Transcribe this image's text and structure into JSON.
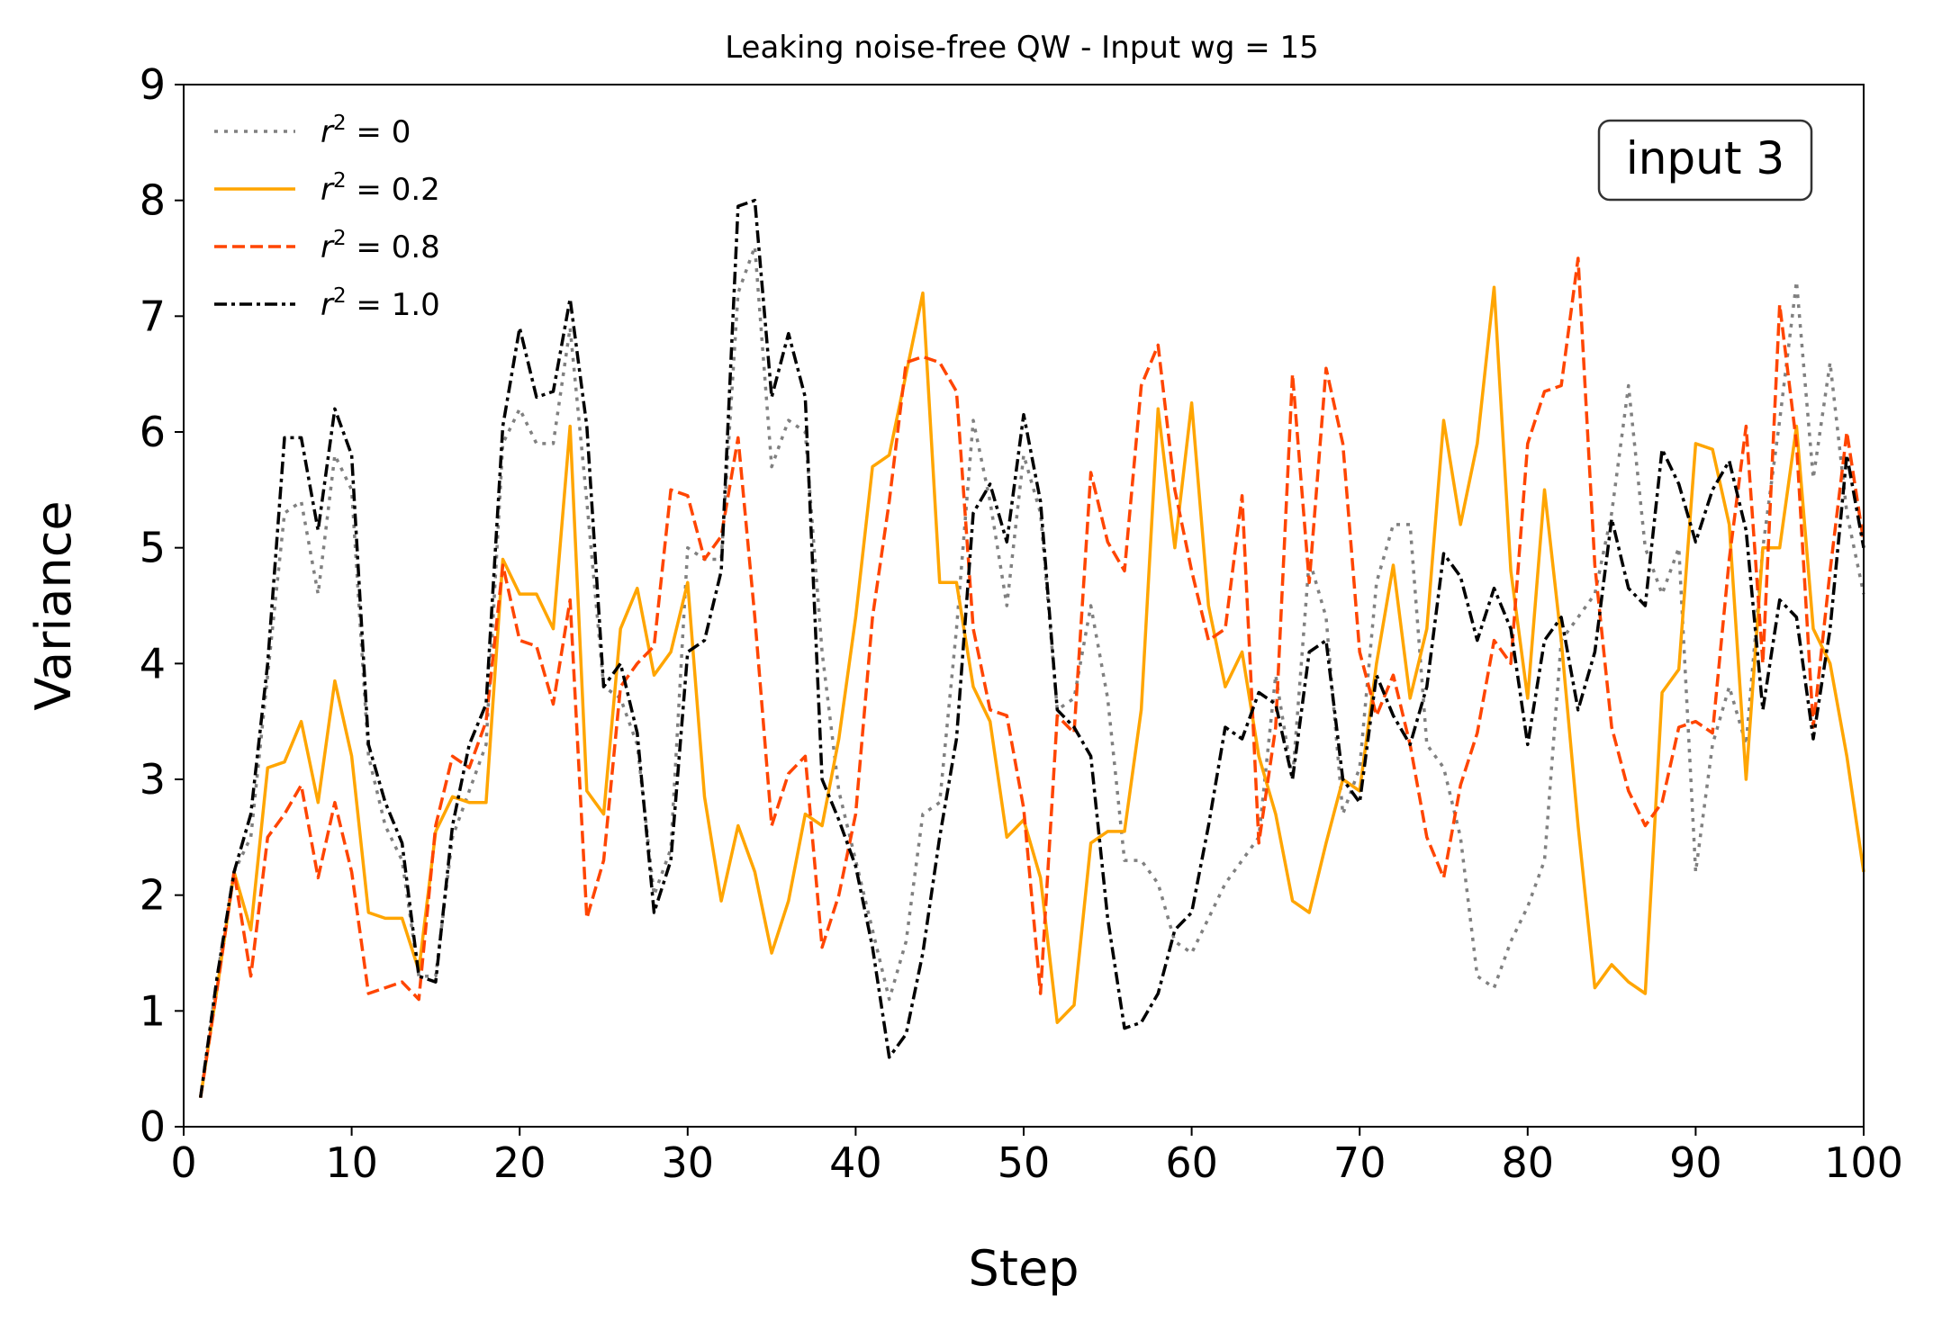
{
  "chart_data": {
    "type": "line",
    "title": "Leaking noise-free QW - Input wg = 15",
    "xlabel": "Step",
    "ylabel": "Variance",
    "xlim": [
      0,
      100
    ],
    "ylim": [
      0,
      9
    ],
    "xticks": [
      0,
      10,
      20,
      30,
      40,
      50,
      60,
      70,
      80,
      90,
      100
    ],
    "yticks": [
      0,
      1,
      2,
      3,
      4,
      5,
      6,
      7,
      8,
      9
    ],
    "annotation": "input 3",
    "legend_position": "top-left",
    "x": [
      1,
      2,
      3,
      4,
      5,
      6,
      7,
      8,
      9,
      10,
      11,
      12,
      13,
      14,
      15,
      16,
      17,
      18,
      19,
      20,
      21,
      22,
      23,
      24,
      25,
      26,
      27,
      28,
      29,
      30,
      31,
      32,
      33,
      34,
      35,
      36,
      37,
      38,
      39,
      40,
      41,
      42,
      43,
      44,
      45,
      46,
      47,
      48,
      49,
      50,
      51,
      52,
      53,
      54,
      55,
      56,
      57,
      58,
      59,
      60,
      61,
      62,
      63,
      64,
      65,
      66,
      67,
      68,
      69,
      70,
      71,
      72,
      73,
      74,
      75,
      76,
      77,
      78,
      79,
      80,
      81,
      82,
      83,
      84,
      85,
      86,
      87,
      88,
      89,
      90,
      91,
      92,
      93,
      94,
      95,
      96,
      97,
      98,
      99,
      100
    ],
    "series": [
      {
        "name": "r²=0",
        "label_prefix": "r",
        "label_sup": "2",
        "label_suffix": " = 0",
        "color": "#808080",
        "dash": "dotted",
        "values": [
          0.25,
          1.3,
          2.2,
          2.5,
          3.9,
          5.3,
          5.4,
          4.6,
          5.8,
          5.5,
          3.2,
          2.6,
          2.3,
          1.3,
          1.3,
          2.5,
          2.9,
          3.3,
          5.9,
          6.2,
          5.9,
          5.9,
          6.9,
          5.4,
          3.8,
          3.7,
          3.3,
          2.0,
          2.4,
          5.0,
          4.9,
          4.9,
          7.2,
          7.6,
          5.7,
          6.1,
          6.0,
          4.1,
          2.9,
          2.3,
          1.7,
          1.1,
          1.6,
          2.7,
          2.8,
          4.3,
          6.1,
          5.4,
          4.5,
          5.8,
          5.3,
          3.6,
          3.7,
          4.5,
          3.7,
          2.3,
          2.3,
          2.1,
          1.6,
          1.5,
          1.8,
          2.1,
          2.3,
          2.5,
          3.9,
          3.0,
          4.9,
          4.4,
          2.7,
          3.1,
          4.7,
          5.2,
          5.2,
          3.3,
          3.1,
          2.5,
          1.3,
          1.2,
          1.6,
          1.9,
          2.3,
          4.2,
          4.4,
          4.6,
          5.3,
          6.4,
          5.0,
          4.6,
          5.0,
          2.2,
          3.3,
          3.8,
          3.3,
          5.0,
          6.1,
          7.3,
          5.6,
          6.6,
          5.3,
          4.6
        ]
      },
      {
        "name": "r²=0.2",
        "label_prefix": "r",
        "label_sup": "2",
        "label_suffix": " = 0.2",
        "color": "#ffa500",
        "dash": "solid",
        "values": [
          0.25,
          1.2,
          2.2,
          1.7,
          3.1,
          3.15,
          3.5,
          2.8,
          3.85,
          3.2,
          1.85,
          1.8,
          1.8,
          1.35,
          2.55,
          2.85,
          2.8,
          2.8,
          4.9,
          4.6,
          4.6,
          4.3,
          6.05,
          2.9,
          2.7,
          4.3,
          4.65,
          3.9,
          4.1,
          4.7,
          2.85,
          1.95,
          2.6,
          2.2,
          1.5,
          1.95,
          2.7,
          2.6,
          3.35,
          4.4,
          5.7,
          5.8,
          6.5,
          7.2,
          4.7,
          4.7,
          3.8,
          3.5,
          2.5,
          2.65,
          2.15,
          0.9,
          1.05,
          2.45,
          2.55,
          2.55,
          3.6,
          6.2,
          5.0,
          6.25,
          4.5,
          3.8,
          4.1,
          3.2,
          2.7,
          1.95,
          1.85,
          2.45,
          3.0,
          2.9,
          4.0,
          4.85,
          3.7,
          4.3,
          6.1,
          5.2,
          5.9,
          7.25,
          4.8,
          3.7,
          5.5,
          4.2,
          2.6,
          1.2,
          1.4,
          1.25,
          1.15,
          3.75,
          3.95,
          5.9,
          5.85,
          5.2,
          3.0,
          5.0,
          5.0,
          6.05,
          4.3,
          4.0,
          3.2,
          2.2
        ]
      },
      {
        "name": "r²=0.8",
        "label_prefix": "r",
        "label_sup": "2",
        "label_suffix": " = 0.8",
        "color": "#ff4500",
        "dash": "dashed",
        "values": [
          0.25,
          1.2,
          2.2,
          1.3,
          2.5,
          2.7,
          2.95,
          2.15,
          2.8,
          2.2,
          1.15,
          1.2,
          1.25,
          1.1,
          2.6,
          3.2,
          3.1,
          3.5,
          4.85,
          4.2,
          4.15,
          3.65,
          4.55,
          1.8,
          2.3,
          3.8,
          4.0,
          4.15,
          5.5,
          5.45,
          4.9,
          5.1,
          5.95,
          4.4,
          2.6,
          3.05,
          3.2,
          1.55,
          2.0,
          2.7,
          4.4,
          5.4,
          6.6,
          6.65,
          6.6,
          6.35,
          4.3,
          3.6,
          3.55,
          2.75,
          1.15,
          3.55,
          3.4,
          5.65,
          5.05,
          4.8,
          6.4,
          6.75,
          5.5,
          4.8,
          4.2,
          4.3,
          5.45,
          2.45,
          3.45,
          6.5,
          4.7,
          6.55,
          5.9,
          4.1,
          3.55,
          3.9,
          3.3,
          2.5,
          2.15,
          2.95,
          3.4,
          4.2,
          4.0,
          5.9,
          6.35,
          6.4,
          7.5,
          4.85,
          3.45,
          2.9,
          2.6,
          2.8,
          3.45,
          3.5,
          3.4,
          4.9,
          6.05,
          4.0,
          7.1,
          5.9,
          3.45,
          4.8,
          6.0,
          5.05
        ]
      },
      {
        "name": "r²=1.0",
        "label_prefix": "r",
        "label_sup": "2",
        "label_suffix": " = 1.0",
        "color": "#000000",
        "dash": "dashdot",
        "values": [
          0.25,
          1.3,
          2.2,
          2.7,
          4.0,
          5.95,
          5.95,
          5.15,
          6.2,
          5.8,
          3.3,
          2.8,
          2.45,
          1.3,
          1.25,
          2.6,
          3.3,
          3.65,
          6.05,
          6.9,
          6.3,
          6.35,
          7.15,
          6.05,
          3.8,
          4.0,
          3.4,
          1.85,
          2.3,
          4.1,
          4.2,
          4.8,
          7.95,
          8.0,
          6.3,
          6.85,
          6.3,
          3.0,
          2.65,
          2.25,
          1.55,
          0.6,
          0.8,
          1.5,
          2.5,
          3.35,
          5.3,
          5.55,
          5.05,
          6.15,
          5.4,
          3.6,
          3.45,
          3.2,
          1.8,
          0.85,
          0.9,
          1.15,
          1.7,
          1.85,
          2.6,
          3.45,
          3.35,
          3.75,
          3.65,
          3.0,
          4.1,
          4.2,
          3.0,
          2.8,
          3.9,
          3.55,
          3.3,
          3.8,
          4.95,
          4.75,
          4.2,
          4.65,
          4.3,
          3.3,
          4.2,
          4.4,
          3.6,
          4.1,
          5.25,
          4.65,
          4.5,
          5.85,
          5.55,
          5.05,
          5.5,
          5.75,
          5.15,
          3.6,
          4.55,
          4.4,
          3.35,
          4.3,
          5.8,
          5.0
        ]
      }
    ]
  }
}
